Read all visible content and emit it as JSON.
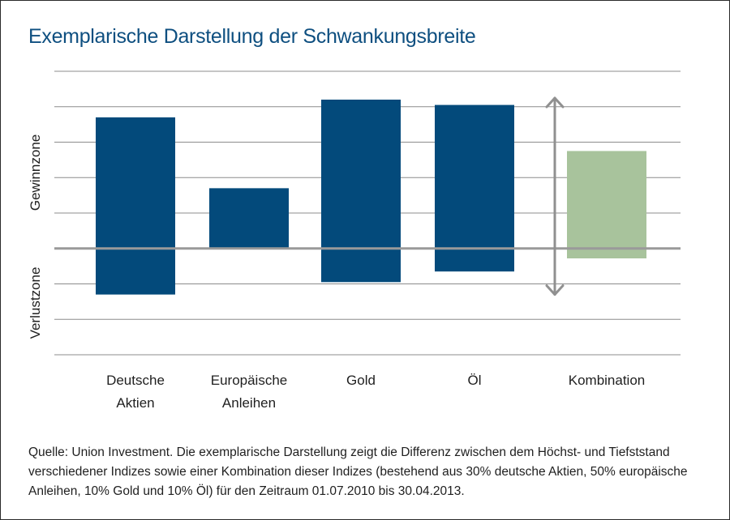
{
  "title": "Exemplarische Darstellung der Schwankungsbreite",
  "colors": {
    "title": "#0e4f80",
    "bar": "#034a7b",
    "combination": "#a8c39c",
    "grid": "#8c8c8c",
    "zero_line": "#9a9a9a",
    "arrow": "#909090"
  },
  "chart_data": {
    "type": "bar",
    "subtype": "floating-range",
    "title": "Exemplarische Darstellung der Schwankungsbreite",
    "ylabel_upper": "Gewinnzone",
    "ylabel_lower": "Verlustzone",
    "ylim": [
      -3,
      5
    ],
    "grid": true,
    "categories": [
      [
        "Deutsche",
        "Aktien"
      ],
      [
        "Europäische",
        "Anleihen"
      ],
      [
        "Gold"
      ],
      [
        "Öl"
      ],
      [
        "Kombination"
      ]
    ],
    "series": [
      {
        "name": "Schwankungsbreite",
        "ranges": [
          [
            -1.3,
            3.7
          ],
          [
            0,
            1.7
          ],
          [
            -0.95,
            4.2
          ],
          [
            -0.65,
            4.05
          ],
          [
            -0.28,
            2.75
          ]
        ],
        "highlight_index": 4
      }
    ],
    "annotation": {
      "type": "double-arrow",
      "between_categories": [
        3,
        4
      ],
      "range": [
        -1.3,
        4.2
      ]
    }
  },
  "source": "Quelle: Union Investment. Die exemplarische Darstellung zeigt die Differenz zwischen dem Höchst- und Tiefststand verschiedener Indizes sowie einer Kombination dieser Indizes (bestehend aus 30% deutsche Aktien, 50% europäische Anleihen, 10% Gold und 10% Öl) für den Zeitraum 01.07.2010 bis 30.04.2013."
}
